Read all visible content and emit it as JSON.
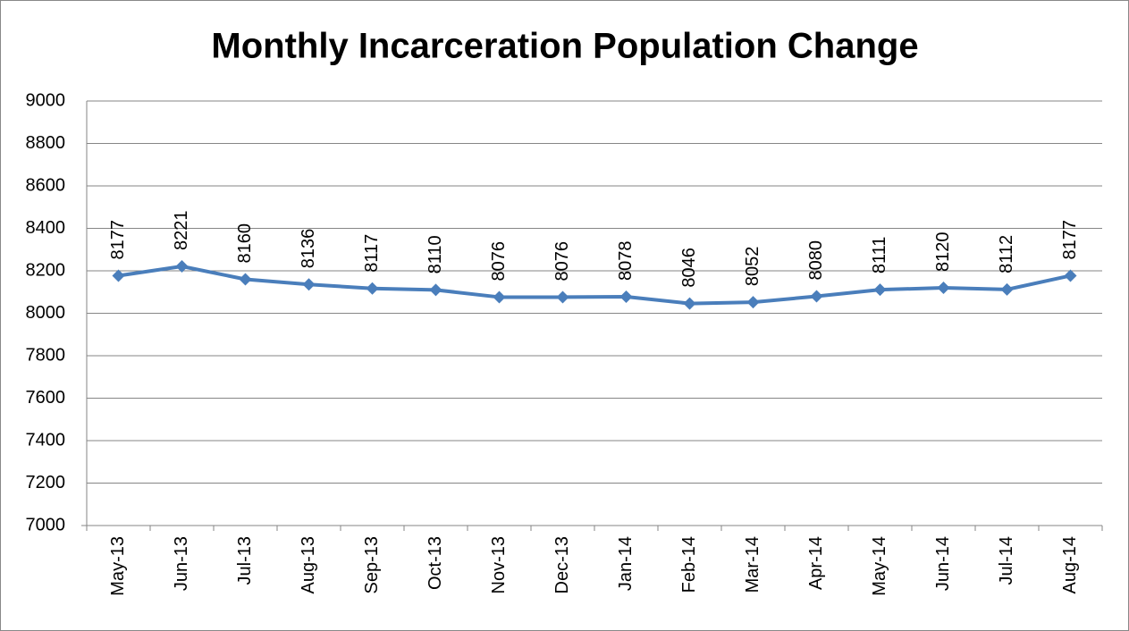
{
  "chart_data": {
    "type": "line",
    "title": "Monthly Incarceration Population Change",
    "categories": [
      "May-13",
      "Jun-13",
      "Jul-13",
      "Aug-13",
      "Sep-13",
      "Oct-13",
      "Nov-13",
      "Dec-13",
      "Jan-14",
      "Feb-14",
      "Mar-14",
      "Apr-14",
      "May-14",
      "Jun-14",
      "Jul-14",
      "Aug-14"
    ],
    "values": [
      8177,
      8221,
      8160,
      8136,
      8117,
      8110,
      8076,
      8076,
      8078,
      8046,
      8052,
      8080,
      8111,
      8120,
      8112,
      8177
    ],
    "color": "#4a7ebb",
    "ylim": [
      7000,
      9000
    ],
    "yticks": [
      7000,
      7200,
      7400,
      7600,
      7800,
      8000,
      8200,
      8400,
      8600,
      8800,
      9000
    ],
    "grid": true,
    "data_labels": true
  }
}
